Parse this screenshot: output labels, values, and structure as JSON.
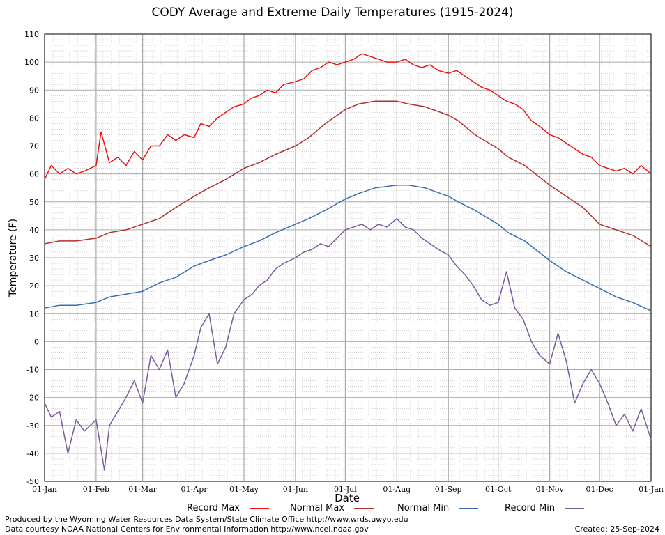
{
  "title": "CODY Average and Extreme Daily Temperatures (1915-2024)",
  "footer": {
    "produced_by": "Produced by the Wyoming Water Resources Data System/State Climate Office http://www.wrds.uwyo.edu",
    "courtesy": "Data courtesy NOAA National Centers for Environmental Information http://www.ncei.noaa.gov",
    "created": "Created: 25-Sep-2024"
  },
  "chart_data": {
    "type": "line",
    "title": "CODY Average and Extreme Daily Temperatures (1915-2024)",
    "xlabel": "Date",
    "ylabel": "Temperature (F)",
    "ylim": [
      -50,
      110
    ],
    "yticks": [
      -50,
      -40,
      -30,
      -20,
      -10,
      0,
      10,
      20,
      30,
      40,
      50,
      60,
      70,
      80,
      90,
      100,
      110
    ],
    "xlim_days": [
      1,
      366
    ],
    "xticks": [
      {
        "label": "01-Jan",
        "day": 1
      },
      {
        "label": "01-Feb",
        "day": 32
      },
      {
        "label": "01-Mar",
        "day": 60
      },
      {
        "label": "01-Apr",
        "day": 91
      },
      {
        "label": "01-May",
        "day": 121
      },
      {
        "label": "01-Jun",
        "day": 152
      },
      {
        "label": "01-Jul",
        "day": 182
      },
      {
        "label": "01-Aug",
        "day": 213
      },
      {
        "label": "01-Sep",
        "day": 244
      },
      {
        "label": "01-Oct",
        "day": 274
      },
      {
        "label": "01-Nov",
        "day": 305
      },
      {
        "label": "01-Dec",
        "day": 335
      },
      {
        "label": "01-Jan",
        "day": 366
      }
    ],
    "grid": true,
    "legend_position": "bottom",
    "series": [
      {
        "name": "Record Max",
        "color": "#ee1111",
        "x": [
          1,
          5,
          10,
          15,
          20,
          25,
          32,
          35,
          40,
          45,
          50,
          55,
          60,
          65,
          70,
          75,
          80,
          85,
          91,
          95,
          100,
          105,
          110,
          115,
          121,
          125,
          130,
          135,
          140,
          145,
          152,
          157,
          162,
          167,
          172,
          177,
          182,
          187,
          192,
          197,
          202,
          207,
          213,
          218,
          223,
          228,
          233,
          238,
          244,
          249,
          254,
          259,
          264,
          269,
          274,
          279,
          284,
          289,
          294,
          299,
          305,
          310,
          315,
          320,
          325,
          330,
          335,
          340,
          345,
          350,
          355,
          360,
          366
        ],
        "values": [
          58,
          63,
          60,
          62,
          60,
          61,
          63,
          75,
          64,
          66,
          63,
          68,
          65,
          70,
          70,
          74,
          72,
          74,
          73,
          78,
          77,
          80,
          82,
          84,
          85,
          87,
          88,
          90,
          89,
          92,
          93,
          94,
          97,
          98,
          100,
          99,
          100,
          101,
          103,
          102,
          101,
          100,
          100,
          101,
          99,
          98,
          99,
          97,
          96,
          97,
          95,
          93,
          91,
          90,
          88,
          86,
          85,
          83,
          79,
          77,
          74,
          73,
          71,
          69,
          67,
          66,
          63,
          62,
          61,
          62,
          60,
          63,
          60
        ]
      },
      {
        "name": "Normal Max",
        "color": "#b03030",
        "x": [
          1,
          10,
          20,
          32,
          40,
          50,
          60,
          70,
          80,
          91,
          100,
          110,
          121,
          130,
          140,
          152,
          160,
          170,
          182,
          190,
          200,
          213,
          220,
          230,
          244,
          250,
          260,
          274,
          280,
          290,
          305,
          315,
          325,
          335,
          345,
          355,
          366
        ],
        "values": [
          35,
          36,
          36,
          37,
          39,
          40,
          42,
          44,
          48,
          52,
          55,
          58,
          62,
          64,
          67,
          70,
          73,
          78,
          83,
          85,
          86,
          86,
          85,
          84,
          81,
          79,
          74,
          69,
          66,
          63,
          56,
          52,
          48,
          42,
          40,
          38,
          34
        ]
      },
      {
        "name": "Normal Min",
        "color": "#3a6eb0",
        "x": [
          1,
          10,
          20,
          32,
          40,
          50,
          60,
          70,
          80,
          91,
          100,
          110,
          121,
          130,
          140,
          152,
          160,
          170,
          182,
          190,
          200,
          213,
          220,
          230,
          244,
          250,
          260,
          274,
          280,
          290,
          305,
          315,
          325,
          335,
          345,
          355,
          366
        ],
        "values": [
          12,
          13,
          13,
          14,
          16,
          17,
          18,
          21,
          23,
          27,
          29,
          31,
          34,
          36,
          39,
          42,
          44,
          47,
          51,
          53,
          55,
          56,
          56,
          55,
          52,
          50,
          47,
          42,
          39,
          36,
          29,
          25,
          22,
          19,
          16,
          14,
          11
        ]
      },
      {
        "name": "Record Min",
        "color": "#7a5a9e",
        "x": [
          1,
          5,
          10,
          15,
          20,
          25,
          32,
          37,
          40,
          45,
          50,
          55,
          60,
          65,
          70,
          75,
          80,
          85,
          91,
          95,
          100,
          105,
          110,
          115,
          121,
          126,
          130,
          135,
          140,
          145,
          152,
          157,
          162,
          167,
          172,
          177,
          182,
          187,
          192,
          197,
          202,
          207,
          213,
          218,
          223,
          228,
          233,
          238,
          244,
          249,
          254,
          259,
          264,
          269,
          274,
          279,
          284,
          289,
          294,
          299,
          305,
          310,
          315,
          320,
          325,
          330,
          335,
          340,
          345,
          350,
          355,
          360,
          366
        ],
        "values": [
          -22,
          -27,
          -25,
          -40,
          -28,
          -32,
          -28,
          -46,
          -30,
          -25,
          -20,
          -14,
          -22,
          -5,
          -10,
          -3,
          -20,
          -15,
          -5,
          5,
          10,
          -8,
          -2,
          10,
          15,
          17,
          20,
          22,
          26,
          28,
          30,
          32,
          33,
          35,
          34,
          37,
          40,
          41,
          42,
          40,
          42,
          41,
          44,
          41,
          40,
          37,
          35,
          33,
          31,
          27,
          24,
          20,
          15,
          13,
          14,
          25,
          12,
          8,
          0,
          -5,
          -8,
          3,
          -7,
          -22,
          -15,
          -10,
          -15,
          -22,
          -30,
          -26,
          -32,
          -24,
          -35
        ]
      }
    ]
  },
  "legend": [
    {
      "label": "Record Max",
      "color": "#ee1111"
    },
    {
      "label": "Normal Max",
      "color": "#b03030"
    },
    {
      "label": "Normal Min",
      "color": "#3a6eb0"
    },
    {
      "label": "Record Min",
      "color": "#7a5a9e"
    }
  ]
}
